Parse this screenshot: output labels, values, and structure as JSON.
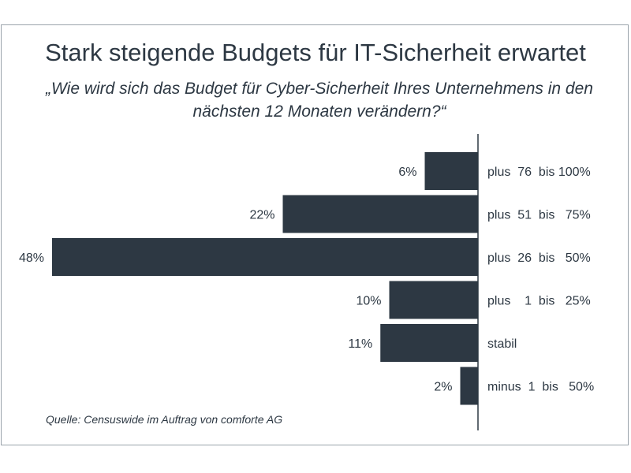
{
  "title": "Stark steigende Budgets für IT-Sicherheit erwartet",
  "subtitle": "„Wie wird sich das Budget für Cyber-Sicherheit Ihres Unternehmens in den nächsten 12 Monaten verändern?“",
  "source": "Quelle: Censuswide im Auftrag von comforte AG",
  "colors": {
    "bar": "#2d3843",
    "text": "#2d3843",
    "axis": "#2d3843",
    "frame": "#9aa3ab"
  },
  "chart_data": {
    "type": "bar",
    "orientation": "horizontal",
    "title": "Stark steigende Budgets für IT-Sicherheit erwartet",
    "subtitle": "„Wie wird sich das Budget für Cyber-Sicherheit Ihres Unternehmens in den nächsten 12 Monaten verändern?“",
    "categories": [
      "plus  76  bis 100%",
      "plus  51  bis   75%",
      "plus  26  bis   50%",
      "plus    1  bis   25%",
      "stabil",
      "minus  1  bis   50%"
    ],
    "values": [
      6,
      22,
      48,
      10,
      11,
      2
    ],
    "data_labels": [
      "6%",
      "22%",
      "48%",
      "10%",
      "11%",
      "2%"
    ],
    "unit": "%",
    "xlim": [
      0,
      48
    ],
    "grid": false,
    "legend": "none"
  }
}
